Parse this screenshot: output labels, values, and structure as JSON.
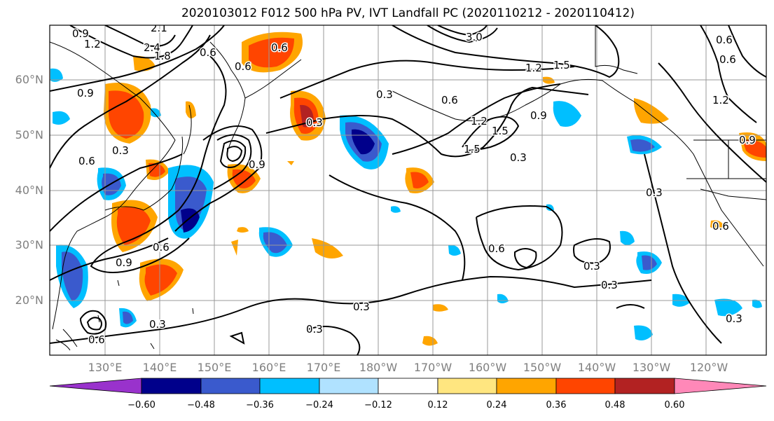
{
  "title": "2020103012 F012 500 hPa PV, IVT Landfall PC (2020110212 - 2020110412)",
  "lat_labels": [
    "60°N",
    "50°N",
    "40°N",
    "30°N",
    "20°N"
  ],
  "lon_labels": [
    "130°E",
    "140°E",
    "150°E",
    "160°E",
    "170°E",
    "180°W",
    "170°W",
    "160°W",
    "150°W",
    "140°W",
    "130°W",
    "120°W"
  ],
  "colorbar": {
    "ticks": [
      "−0.60",
      "−0.48",
      "−0.36",
      "−0.24",
      "−0.12",
      "0.12",
      "0.24",
      "0.36",
      "0.48",
      "0.60"
    ],
    "colors": [
      "#9932cc",
      "#00008b",
      "#3a5acd",
      "#00bfff",
      "#b0e2ff",
      "#ffffff",
      "#ffe680",
      "#ffa500",
      "#ff4500",
      "#b22222",
      "#ff88b8"
    ]
  },
  "contour_labels": [
    "0.9",
    "1.2",
    "2.1",
    "2.4",
    "1.8",
    "0.6",
    "0.6",
    "3.0",
    "1.2",
    "1.5",
    "0.6",
    "0.3",
    "0.9",
    "0.3",
    "0.6",
    "0.3",
    "0.6",
    "1.2",
    "1.5",
    "0.9",
    "1.5",
    "0.3",
    "0.9",
    "0.3",
    "0.6",
    "0.9",
    "0.6",
    "0.3",
    "0.3",
    "0.3",
    "0.6",
    "0.6",
    "0.3",
    "0.3",
    "1.2",
    "0.9",
    "0.6",
    "0.6",
    "0.3"
  ]
}
